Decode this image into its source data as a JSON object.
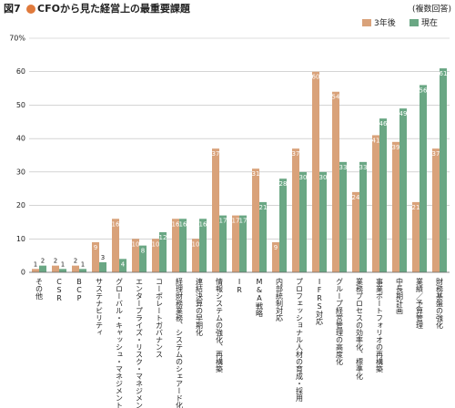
{
  "figure_label": "図7",
  "chart_data": {
    "type": "bar",
    "title": "CFOから見た経営上の最重要課題",
    "subtitle": "(複数回答)",
    "categories": [
      "その他",
      "CSR",
      "BCP",
      "サステナビリティ",
      "グローバル・キャッシュ・マネジメント",
      "エンタープライズ・リスク・マネジメント",
      "コーポレートガバナンス",
      "経理財務業務、システムのシェアード化",
      "連結決算の早期化",
      "情報システムの強化、再構築",
      "IR",
      "M&A戦略",
      "内部統制対応",
      "プロフェッショナル人材の育成・採用",
      "IFRS対応",
      "グループ経営管理の高度化",
      "業務プロセスの効率化、標準化",
      "事業ポートフォリオの再構築",
      "中長期計画",
      "業績／予算管理",
      "財務基盤の強化"
    ],
    "series": [
      {
        "name": "3年後",
        "color": "#d9a27a",
        "values": [
          1,
          2,
          2,
          9,
          16,
          10,
          10,
          16,
          10,
          37,
          17,
          31,
          9,
          37,
          60,
          54,
          24,
          41,
          39,
          21,
          37
        ]
      },
      {
        "name": "現在",
        "color": "#6aa784",
        "values": [
          2,
          1,
          1,
          3,
          4,
          8,
          12,
          16,
          16,
          17,
          17,
          21,
          28,
          30,
          30,
          33,
          33,
          46,
          49,
          56,
          61
        ]
      }
    ],
    "ylim": [
      0,
      70
    ],
    "yticks": [
      0,
      10,
      20,
      30,
      40,
      50,
      60,
      {
        "value": 70,
        "label": "70%"
      }
    ],
    "grid": true
  }
}
